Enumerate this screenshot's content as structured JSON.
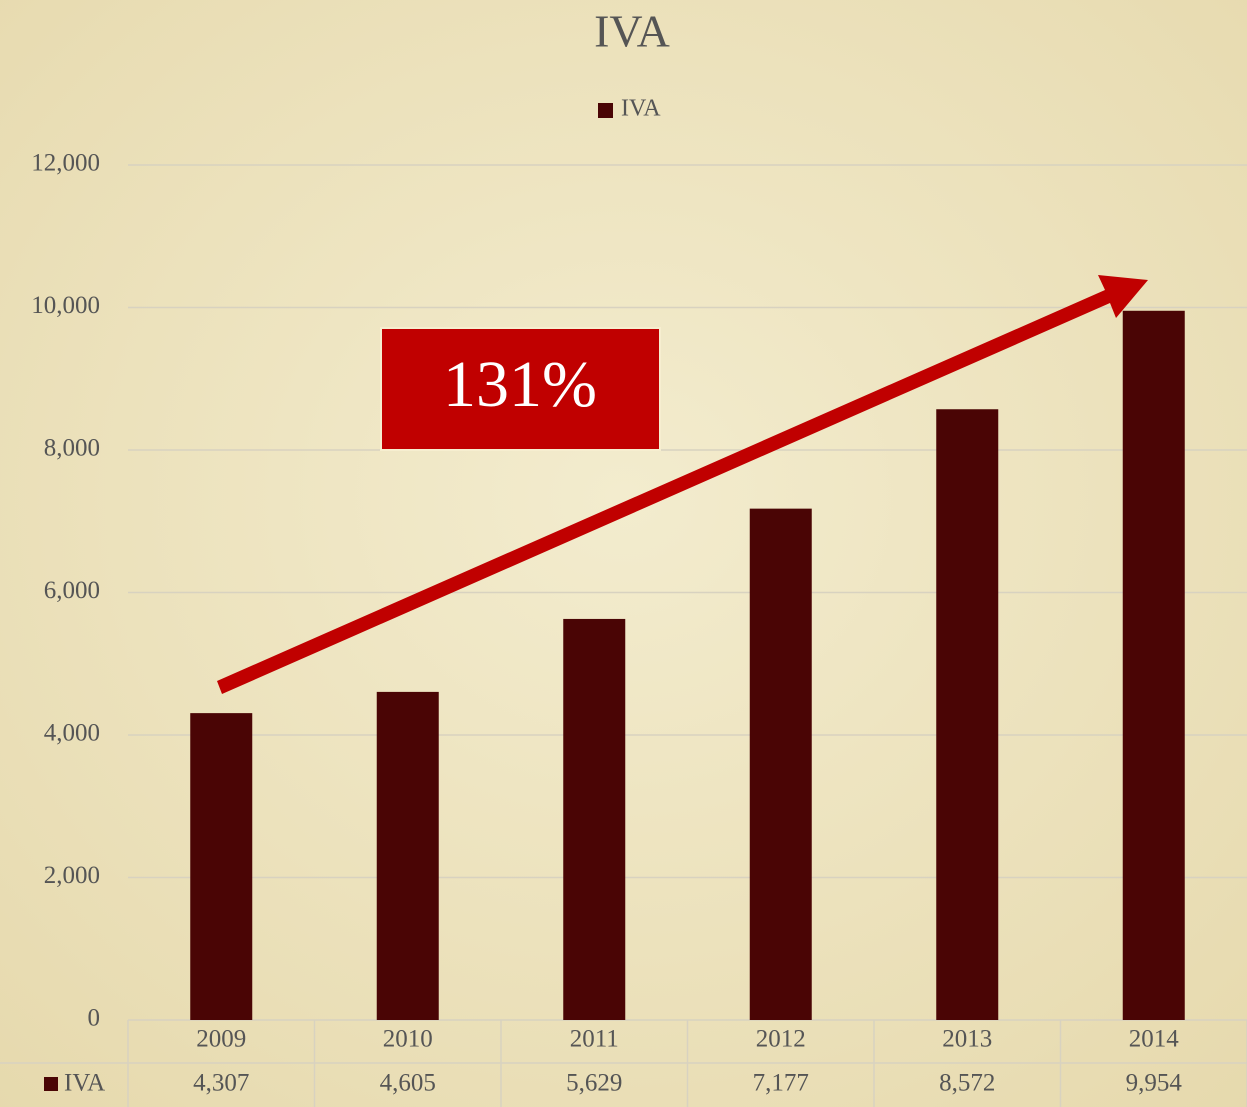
{
  "chart_data": {
    "type": "bar",
    "title": "IVA",
    "annotation": "131%",
    "categories": [
      "2009",
      "2010",
      "2011",
      "2012",
      "2013",
      "2014"
    ],
    "series": [
      {
        "name": "IVA",
        "color": "#4a0505",
        "values": [
          4307,
          4605,
          5629,
          7177,
          8572,
          9954
        ],
        "value_labels": [
          "4,307",
          "4,605",
          "5,629",
          "7,177",
          "8,572",
          "9,954"
        ]
      }
    ],
    "ylim": [
      0,
      12000
    ],
    "yticks": [
      0,
      {
        "value": 2000,
        "label": "2,000"
      },
      {
        "value": 4000,
        "label": "4,000"
      },
      {
        "value": 6000,
        "label": "6,000"
      },
      {
        "value": 8000,
        "label": "8,000"
      },
      {
        "value": 10000,
        "label": "10,000"
      },
      {
        "value": 12000,
        "label": "12,000"
      }
    ],
    "grid": true,
    "legend": "top",
    "data_table": true
  }
}
